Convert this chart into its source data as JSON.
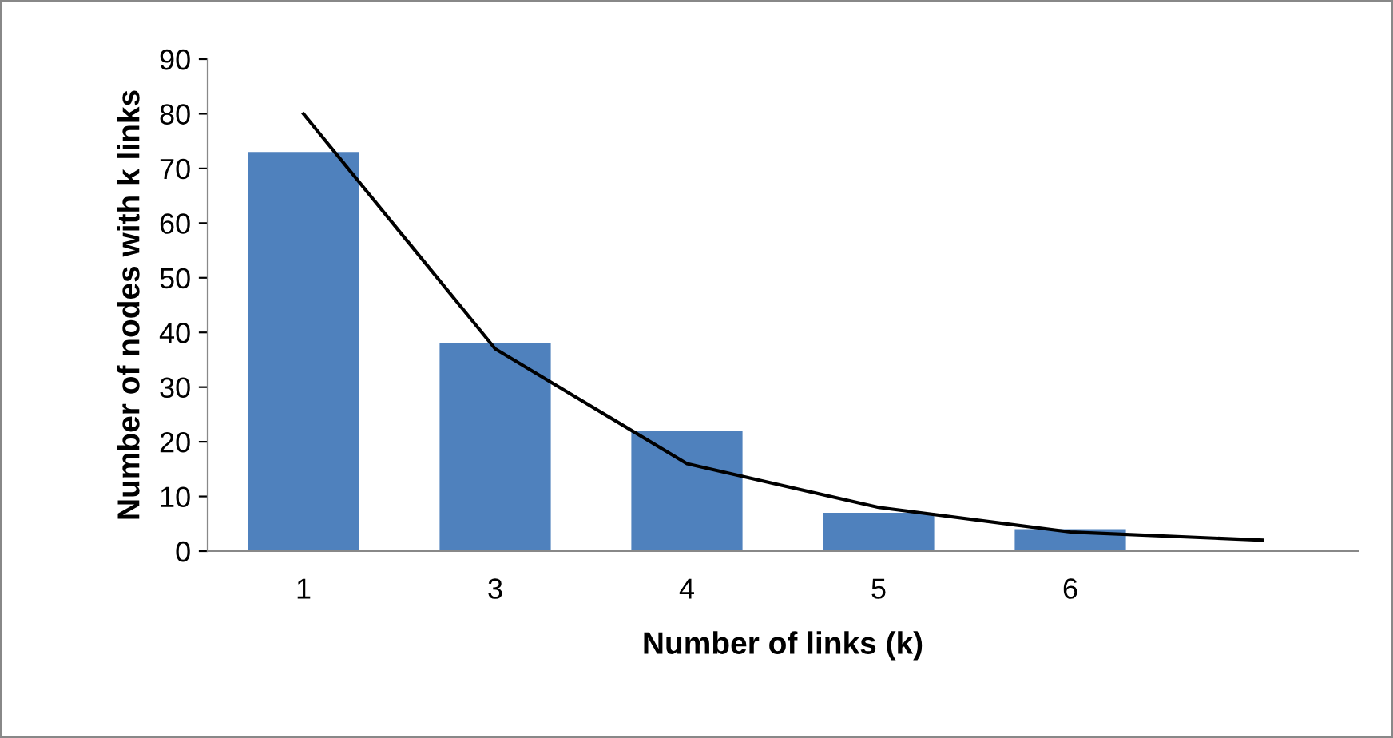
{
  "chart_data": {
    "type": "bar",
    "xlabel": "Number of links (k)",
    "ylabel": "Number of nodes with k links",
    "categories": [
      "1",
      "3",
      "4",
      "5",
      "6",
      null
    ],
    "series": [
      {
        "color": "#4f81bd",
        "values": [
          73,
          38,
          22,
          7,
          4,
          null
        ]
      },
      {
        "type": "line",
        "color": "#000000",
        "values": [
          80,
          37,
          16,
          8,
          3.5,
          2
        ]
      }
    ],
    "ylim": [
      0,
      90
    ],
    "yticks": [
      0,
      10,
      20,
      30,
      40,
      50,
      60,
      70,
      80,
      90
    ],
    "grid": false,
    "legend": false
  }
}
